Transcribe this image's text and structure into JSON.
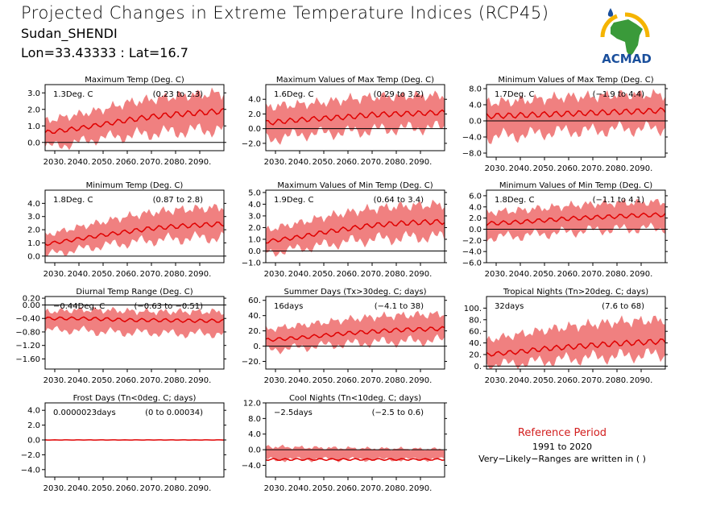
{
  "header": {
    "title": "Projected Changes in Extreme Temperature Indices (RCP45)",
    "location": "Sudan_SHENDI",
    "coords": "Lon=33.43333 : Lat=16.7"
  },
  "logo": {
    "name": "ACMAD"
  },
  "reference": {
    "title": "Reference Period",
    "years": "1991 to 2020",
    "note": "Very−Likely−Ranges are written in ( )"
  },
  "colors": {
    "band": "#f08080",
    "line": "#e00000",
    "zero": "#000000"
  },
  "chart_data": [
    {
      "type": "area",
      "title": "Maximum Temp (Deg. C)",
      "value_text": "1.3Deg. C",
      "range_text": "(0.23 to 2.3)",
      "x_ticks": [
        "2030.",
        "2040.",
        "2050.",
        "2060.",
        "2070.",
        "2080.",
        "2090."
      ],
      "ylim": [
        -0.5,
        3.5
      ],
      "y_ticks": [
        0,
        1,
        2,
        3
      ],
      "y_tick_labels": [
        "0.0",
        "1.0",
        "2.0",
        "3.0"
      ],
      "series": [
        {
          "x": [
            2026,
            2040,
            2050,
            2060,
            2070,
            2080,
            2090,
            2100
          ],
          "mean": [
            0.6,
            0.85,
            1.1,
            1.35,
            1.55,
            1.7,
            1.8,
            1.9
          ],
          "low": [
            -0.3,
            0.0,
            0.3,
            0.4,
            0.55,
            0.65,
            0.75,
            0.8
          ],
          "high": [
            1.3,
            1.7,
            2.0,
            2.4,
            2.6,
            2.8,
            2.9,
            3.0
          ]
        }
      ]
    },
    {
      "type": "area",
      "title": "Maximum Values of Max Temp (Deg. C)",
      "value_text": "1.6Deg. C",
      "range_text": "(0.29 to 3.2)",
      "x_ticks": [
        "2030.",
        "2040.",
        "2050.",
        "2060.",
        "2070.",
        "2080.",
        "2090."
      ],
      "ylim": [
        -3,
        6
      ],
      "y_ticks": [
        -2,
        0,
        2,
        4
      ],
      "y_tick_labels": [
        "−2.0",
        "0.0",
        "2.0",
        "4.0"
      ],
      "series": [
        {
          "x": [
            2026,
            2040,
            2050,
            2060,
            2070,
            2080,
            2090,
            2100
          ],
          "mean": [
            0.8,
            1.2,
            1.4,
            1.6,
            1.9,
            2.0,
            2.1,
            2.2
          ],
          "low": [
            -1.5,
            -0.8,
            -0.6,
            -0.5,
            -0.2,
            0.0,
            0.1,
            0.2
          ],
          "high": [
            3.0,
            3.3,
            3.6,
            4.0,
            4.3,
            4.4,
            4.5,
            4.5
          ]
        }
      ]
    },
    {
      "type": "area",
      "title": "Minimum Values of Max Temp (Deg. C)",
      "value_text": "1.7Deg. C",
      "range_text": "(−1.9 to 4.4)",
      "x_ticks": [
        "2030.",
        "2040.",
        "2050.",
        "2060.",
        "2070.",
        "2080.",
        "2090."
      ],
      "ylim": [
        -9,
        9
      ],
      "y_ticks": [
        -8,
        -4,
        0,
        4,
        8
      ],
      "y_tick_labels": [
        "−8.0",
        "−4.0",
        "0.0",
        "4.0",
        "8.0"
      ],
      "series": [
        {
          "x": [
            2026,
            2040,
            2050,
            2060,
            2070,
            2080,
            2090,
            2100
          ],
          "mean": [
            1.2,
            1.4,
            1.6,
            1.8,
            2.0,
            2.2,
            2.4,
            2.6
          ],
          "low": [
            -4.0,
            -3.5,
            -3.0,
            -2.5,
            -2.5,
            -2.0,
            -2.0,
            -1.8
          ],
          "high": [
            4.5,
            5.0,
            5.5,
            6.0,
            6.0,
            6.5,
            6.5,
            6.5
          ]
        }
      ]
    },
    {
      "type": "area",
      "title": "Minimum Temp (Deg. C)",
      "value_text": "1.8Deg. C",
      "range_text": "(0.87 to 2.8)",
      "x_ticks": [
        "2030.",
        "2040.",
        "2050.",
        "2060.",
        "2070.",
        "2080.",
        "2090."
      ],
      "ylim": [
        -0.5,
        5
      ],
      "y_ticks": [
        0,
        1,
        2,
        3,
        4
      ],
      "y_tick_labels": [
        "0.0",
        "1.0",
        "2.0",
        "3.0",
        "4.0"
      ],
      "series": [
        {
          "x": [
            2026,
            2040,
            2050,
            2060,
            2070,
            2080,
            2090,
            2100
          ],
          "mean": [
            0.9,
            1.3,
            1.6,
            1.85,
            2.1,
            2.25,
            2.35,
            2.45
          ],
          "low": [
            0.1,
            0.5,
            0.8,
            1.0,
            1.2,
            1.3,
            1.4,
            1.4
          ],
          "high": [
            1.6,
            2.2,
            2.6,
            3.0,
            3.3,
            3.5,
            3.6,
            3.7
          ]
        }
      ]
    },
    {
      "type": "area",
      "title": "Maximum Values of Min Temp (Deg. C)",
      "value_text": "1.9Deg. C",
      "range_text": "(0.64 to 3.4)",
      "x_ticks": [
        "2030.",
        "2040.",
        "2050.",
        "2060.",
        "2070.",
        "2080.",
        "2090."
      ],
      "ylim": [
        -1,
        5.2
      ],
      "y_ticks": [
        -1,
        0,
        1,
        2,
        3,
        4,
        5
      ],
      "y_tick_labels": [
        "−1.0",
        "0.0",
        "1.0",
        "2.0",
        "3.0",
        "4.0",
        "5.0"
      ],
      "series": [
        {
          "x": [
            2026,
            2040,
            2050,
            2060,
            2070,
            2080,
            2090,
            2100
          ],
          "mean": [
            0.8,
            1.2,
            1.6,
            1.9,
            2.2,
            2.35,
            2.45,
            2.5
          ],
          "low": [
            -0.2,
            0.2,
            0.5,
            0.8,
            1.0,
            1.1,
            1.2,
            1.2
          ],
          "high": [
            1.8,
            2.4,
            2.9,
            3.3,
            3.6,
            3.8,
            3.9,
            4.0
          ]
        }
      ]
    },
    {
      "type": "area",
      "title": "Minimum Values of Min Temp (Deg. C)",
      "value_text": "1.8Deg. C",
      "range_text": "(−1.1 to 4.1)",
      "x_ticks": [
        "2030.",
        "2040.",
        "2050.",
        "2060.",
        "2070.",
        "2080.",
        "2090."
      ],
      "ylim": [
        -6,
        7
      ],
      "y_ticks": [
        -6,
        -4,
        -2,
        0,
        2,
        4,
        6
      ],
      "y_tick_labels": [
        "−6.0",
        "−4.0",
        "−2.0",
        "0.0",
        "2.0",
        "4.0",
        "6.0"
      ],
      "series": [
        {
          "x": [
            2026,
            2040,
            2050,
            2060,
            2070,
            2080,
            2090,
            2100
          ],
          "mean": [
            1.0,
            1.3,
            1.6,
            1.9,
            2.1,
            2.3,
            2.5,
            2.6
          ],
          "low": [
            -1.5,
            -1.2,
            -0.8,
            -0.5,
            -0.2,
            0.0,
            0.1,
            0.2
          ],
          "high": [
            3.0,
            3.4,
            3.8,
            4.2,
            4.5,
            4.7,
            4.8,
            4.9
          ]
        }
      ]
    },
    {
      "type": "area",
      "title": "Diurnal Temp Range (Deg. C)",
      "value_text": "−0.44Deg. C",
      "range_text": "(−0.63 to −0.51)",
      "x_ticks": [
        "2030.",
        "2040.",
        "2050.",
        "2060.",
        "2070.",
        "2080.",
        "2090."
      ],
      "ylim": [
        -1.9,
        0.25
      ],
      "y_ticks": [
        -1.6,
        -1.2,
        -0.8,
        -0.4,
        0.0,
        0.2
      ],
      "y_tick_labels": [
        "−1.60",
        "−1.20",
        "−0.80",
        "−0.40",
        "0.00",
        "0.20"
      ],
      "series": [
        {
          "x": [
            2026,
            2040,
            2050,
            2060,
            2070,
            2080,
            2090,
            2100
          ],
          "mean": [
            -0.4,
            -0.4,
            -0.42,
            -0.45,
            -0.45,
            -0.46,
            -0.47,
            -0.47
          ],
          "low": [
            -0.75,
            -0.75,
            -0.8,
            -0.82,
            -0.82,
            -0.85,
            -0.85,
            -0.85
          ],
          "high": [
            -0.2,
            -0.15,
            -0.15,
            -0.18,
            -0.2,
            -0.2,
            -0.2,
            -0.2
          ]
        }
      ]
    },
    {
      "type": "area",
      "title": "Summer Days (Tx>30deg. C; days)",
      "value_text": "16days",
      "range_text": "(−4.1 to 38)",
      "x_ticks": [
        "2030.",
        "2040.",
        "2050.",
        "2060.",
        "2070.",
        "2080.",
        "2090."
      ],
      "ylim": [
        -30,
        65
      ],
      "y_ticks": [
        -20,
        0,
        20,
        40,
        60
      ],
      "y_tick_labels": [
        "−20.",
        "0.",
        "20.",
        "40.",
        "60."
      ],
      "series": [
        {
          "x": [
            2026,
            2040,
            2050,
            2060,
            2070,
            2080,
            2090,
            2100
          ],
          "mean": [
            8,
            11,
            14,
            17,
            19,
            21,
            22,
            23
          ],
          "low": [
            -5,
            -2,
            1,
            3,
            5,
            6,
            7,
            8
          ],
          "high": [
            22,
            27,
            31,
            35,
            38,
            40,
            41,
            42
          ]
        }
      ]
    },
    {
      "type": "area",
      "title": "Tropical Nights (Tn>20deg. C; days)",
      "value_text": "32days",
      "range_text": "(7.6 to 68)",
      "x_ticks": [
        "2030.",
        "2040.",
        "2050.",
        "2060.",
        "2070.",
        "2080.",
        "2090."
      ],
      "ylim": [
        -5,
        120
      ],
      "y_ticks": [
        0,
        20,
        40,
        60,
        80,
        100
      ],
      "y_tick_labels": [
        "0.",
        "20.",
        "40.",
        "60.",
        "80.",
        "100."
      ],
      "series": [
        {
          "x": [
            2026,
            2040,
            2050,
            2060,
            2070,
            2080,
            2090,
            2100
          ],
          "mean": [
            20,
            25,
            30,
            33,
            36,
            39,
            41,
            43
          ],
          "low": [
            2,
            5,
            9,
            12,
            15,
            17,
            19,
            20
          ],
          "high": [
            45,
            55,
            62,
            68,
            72,
            76,
            78,
            80
          ]
        }
      ]
    },
    {
      "type": "area",
      "title": "Frost Days (Tn<0deg. C; days)",
      "value_text": "0.0000023days",
      "range_text": "(0 to 0.00034)",
      "x_ticks": [
        "2030.",
        "2040.",
        "2050.",
        "2060.",
        "2070.",
        "2080.",
        "2090."
      ],
      "ylim": [
        -5,
        5
      ],
      "y_ticks": [
        -4,
        -2,
        0,
        2,
        4
      ],
      "y_tick_labels": [
        "−4.0",
        "−2.0",
        "0.0",
        "2.0",
        "4.0"
      ],
      "series": [
        {
          "x": [
            2026,
            2040,
            2050,
            2060,
            2070,
            2080,
            2090,
            2100
          ],
          "mean": [
            0,
            0,
            0,
            0,
            0,
            0,
            0,
            0
          ],
          "low": [
            0,
            0,
            0,
            0,
            0,
            0,
            0,
            0
          ],
          "high": [
            0,
            0,
            0,
            0,
            0,
            0,
            0,
            0
          ]
        }
      ]
    },
    {
      "type": "area",
      "title": "Cool Nights (Tn<10deg. C; days)",
      "value_text": "−2.5days",
      "range_text": "(−2.5 to 0.6)",
      "x_ticks": [
        "2030.",
        "2040.",
        "2050.",
        "2060.",
        "2070.",
        "2080.",
        "2090."
      ],
      "ylim": [
        -7,
        12
      ],
      "y_ticks": [
        -4,
        0,
        4,
        8,
        12
      ],
      "y_tick_labels": [
        "−4.0",
        "0.0",
        "4.0",
        "8.0",
        "12.0"
      ],
      "series": [
        {
          "x": [
            2026,
            2040,
            2050,
            2060,
            2070,
            2080,
            2090,
            2100
          ],
          "mean": [
            -2.5,
            -2.5,
            -2.5,
            -2.5,
            -2.5,
            -2.5,
            -2.5,
            -2.5
          ],
          "low": [
            -2.5,
            -2.5,
            -2.5,
            -2.5,
            -2.5,
            -2.5,
            -2.5,
            -2.5
          ],
          "high": [
            0.8,
            0.6,
            0.5,
            0.4,
            0.3,
            0.3,
            0.2,
            0.2
          ]
        }
      ]
    }
  ]
}
